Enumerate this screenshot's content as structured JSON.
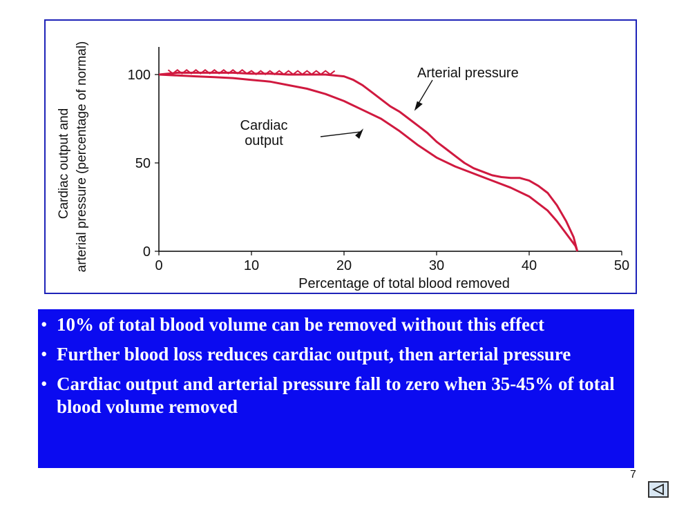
{
  "figure": {
    "colors": {
      "frame": "#1d22b8",
      "curve": "#d0193f",
      "axis": "#000000"
    }
  },
  "chart_data": {
    "type": "line",
    "xlabel": "Percentage of total blood removed",
    "ylabel_line1": "Cardiac output and",
    "ylabel_line2": "arterial pressure (percentage of normal)",
    "xlim": [
      0,
      50
    ],
    "ylim": [
      0,
      100
    ],
    "x_ticks": [
      "0",
      "10",
      "20",
      "30",
      "40",
      "50"
    ],
    "y_ticks": [
      "0",
      "50",
      "100"
    ],
    "grid": false,
    "series": [
      {
        "name": "Arterial pressure",
        "x": [
          0,
          2,
          4,
          6,
          8,
          10,
          12,
          14,
          16,
          18,
          20,
          21,
          22,
          23,
          24,
          25,
          26,
          27,
          28,
          29,
          30,
          31,
          32,
          33,
          34,
          35,
          36,
          37,
          38,
          39,
          40,
          41,
          42,
          43,
          44,
          44.8,
          45.2
        ],
        "y": [
          100,
          101,
          101,
          101,
          101,
          100.5,
          100.5,
          100,
          100,
          100,
          99,
          97,
          94,
          90,
          86,
          82,
          79,
          75,
          71,
          67,
          62,
          58,
          54,
          50,
          47,
          45,
          43,
          42,
          41.5,
          41.5,
          40,
          37,
          33,
          26,
          17,
          8,
          0
        ]
      },
      {
        "name": "Cardiac output",
        "x": [
          0,
          2,
          4,
          6,
          8,
          10,
          12,
          14,
          16,
          18,
          20,
          22,
          24,
          26,
          28,
          30,
          32,
          34,
          36,
          38,
          40,
          42,
          43,
          44,
          45,
          45.2
        ],
        "y": [
          100,
          99.5,
          99,
          98.5,
          98,
          97,
          96,
          94,
          92,
          89,
          85,
          80,
          75,
          68,
          60,
          53,
          48,
          44,
          40,
          36,
          31,
          23,
          17,
          10,
          3,
          0
        ]
      }
    ],
    "annotations": [
      {
        "text": "Arterial pressure",
        "x": 27,
        "y": 81
      },
      {
        "text": "Cardiac output",
        "x": 21.5,
        "y": 73
      }
    ]
  },
  "bullets": [
    {
      "marker": "•",
      "text": "10% of total blood volume can be removed without this effect"
    },
    {
      "marker": "•",
      "text": "Further blood loss reduces cardiac output, then arterial pressure"
    },
    {
      "marker": "•",
      "text": "Cardiac output and arterial pressure fall to zero when 35-45% of total blood volume removed"
    }
  ],
  "page_number": "7",
  "nav": {
    "back_icon": "back-triangle-icon"
  }
}
